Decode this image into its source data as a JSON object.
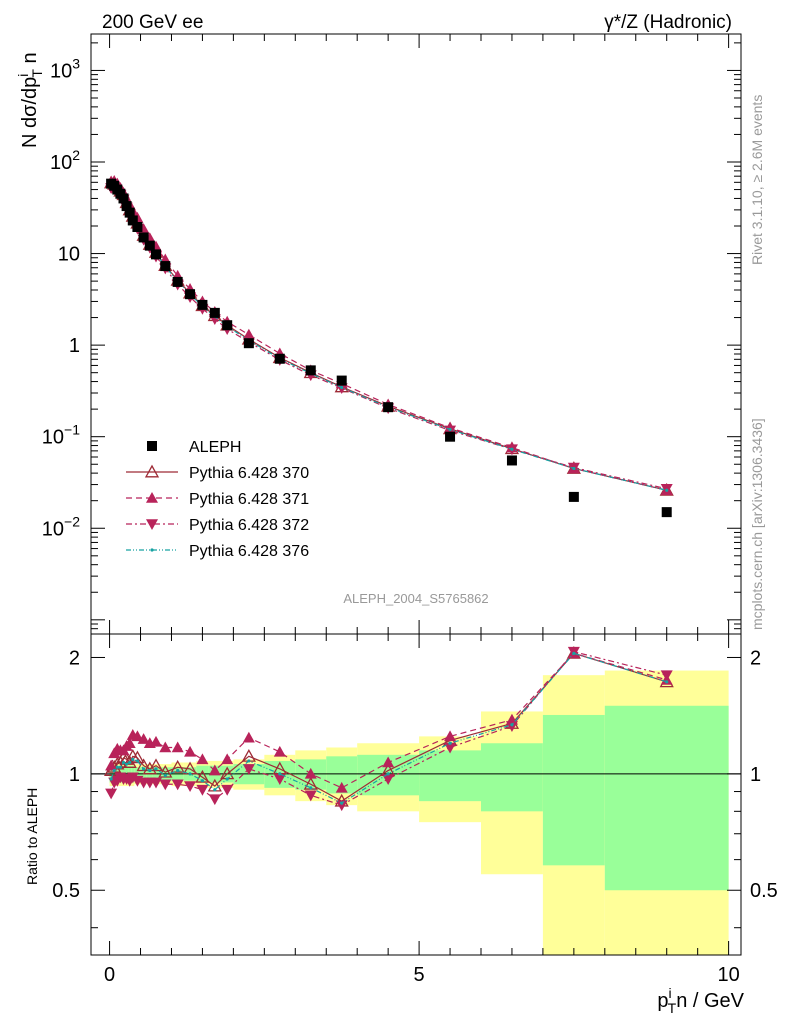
{
  "header": {
    "left": "200 GeV ee",
    "right": "γ*/Z (Hadronic)"
  },
  "side_labels": {
    "rivet": "Rivet 3.1.10, ≥ 2.6M events",
    "mcplots": "mcplots.cern.ch [arXiv:1306.3436]"
  },
  "watermark": "ALEPH_2004_S5765862",
  "colors": {
    "data": "#000000",
    "p370": "#9e2b36",
    "p371": "#b8235a",
    "p372": "#b8235a",
    "p376": "#17a2a2",
    "band_inner": "#99ff99",
    "band_outer": "#ffff99"
  },
  "chart_data": [
    {
      "type": "scatter",
      "panel": "main",
      "ylabel": "N dσ/dp_T^i n",
      "yscale": "log",
      "ylim": [
        0.0007,
        2500
      ],
      "xlim": [
        -0.3,
        10.2
      ],
      "ytick_labels": [
        "10^-2",
        "10^-1",
        "1",
        "10",
        "10^2",
        "10^3"
      ],
      "legend_position": "left-middle",
      "series": [
        {
          "name": "ALEPH",
          "marker": "square",
          "x": [
            0.025,
            0.075,
            0.125,
            0.175,
            0.225,
            0.275,
            0.325,
            0.375,
            0.45,
            0.55,
            0.65,
            0.75,
            0.9,
            1.1,
            1.3,
            1.5,
            1.7,
            1.9,
            2.25,
            2.75,
            3.25,
            3.75,
            4.5,
            5.5,
            6.5,
            7.5,
            9.0
          ],
          "y": [
            58,
            55,
            50,
            45,
            40,
            33,
            28,
            23,
            19.5,
            15,
            12.2,
            9.8,
            7.3,
            4.9,
            3.6,
            2.75,
            2.25,
            1.65,
            1.05,
            0.71,
            0.53,
            0.41,
            0.21,
            0.1,
            0.055,
            0.022,
            0.015
          ]
        },
        {
          "name": "Pythia 6.428 370",
          "marker": "open-triangle-up",
          "line": "solid",
          "x": [
            0.025,
            0.075,
            0.125,
            0.175,
            0.225,
            0.275,
            0.325,
            0.375,
            0.45,
            0.55,
            0.65,
            0.75,
            0.9,
            1.1,
            1.3,
            1.5,
            1.7,
            1.9,
            2.25,
            2.75,
            3.25,
            3.75,
            4.5,
            5.5,
            6.5,
            7.5,
            9.0
          ],
          "y": [
            59,
            57,
            53,
            48,
            44,
            36,
            30,
            25.5,
            21.5,
            15.8,
            12.6,
            10.3,
            7.4,
            5.1,
            3.7,
            2.7,
            2.1,
            1.65,
            1.16,
            0.73,
            0.5,
            0.35,
            0.215,
            0.122,
            0.074,
            0.045,
            0.026
          ]
        },
        {
          "name": "Pythia 6.428 371",
          "marker": "filled-triangle-up",
          "line": "dashed",
          "x": [
            0.025,
            0.075,
            0.125,
            0.175,
            0.225,
            0.275,
            0.325,
            0.375,
            0.45,
            0.55,
            0.65,
            0.75,
            0.9,
            1.1,
            1.3,
            1.5,
            1.7,
            1.9,
            2.25,
            2.75,
            3.25,
            3.75,
            4.5,
            5.5,
            6.5,
            7.5,
            9.0
          ],
          "y": [
            61,
            62,
            58,
            52,
            46,
            39,
            34,
            29,
            24.5,
            18.5,
            14.7,
            11.9,
            8.6,
            5.7,
            4.1,
            3.0,
            2.3,
            1.8,
            1.3,
            0.81,
            0.53,
            0.38,
            0.225,
            0.125,
            0.076,
            0.045,
            0.026
          ]
        },
        {
          "name": "Pythia 6.428 372",
          "marker": "filled-triangle-down",
          "line": "dash-dot",
          "x": [
            0.025,
            0.075,
            0.125,
            0.175,
            0.225,
            0.275,
            0.325,
            0.375,
            0.45,
            0.55,
            0.65,
            0.75,
            0.9,
            1.1,
            1.3,
            1.5,
            1.7,
            1.9,
            2.25,
            2.75,
            3.25,
            3.75,
            4.5,
            5.5,
            6.5,
            7.5,
            9.0
          ],
          "y": [
            52,
            52,
            48,
            44,
            39,
            32,
            27,
            22.5,
            18.7,
            14.2,
            11.6,
            9.3,
            6.9,
            4.6,
            3.35,
            2.5,
            1.93,
            1.5,
            1.08,
            0.69,
            0.47,
            0.34,
            0.205,
            0.117,
            0.073,
            0.046,
            0.027
          ]
        },
        {
          "name": "Pythia 6.428 376",
          "marker": "small-dot",
          "line": "dash-dot-dot",
          "x": [
            0.025,
            0.075,
            0.125,
            0.175,
            0.225,
            0.275,
            0.325,
            0.375,
            0.45,
            0.55,
            0.65,
            0.75,
            0.9,
            1.1,
            1.3,
            1.5,
            1.7,
            1.9,
            2.25,
            2.75,
            3.25,
            3.75,
            4.5,
            5.5,
            6.5,
            7.5,
            9.0
          ],
          "y": [
            56,
            56,
            52,
            47,
            43,
            35,
            30,
            25,
            21,
            15.5,
            12.4,
            10.1,
            7.2,
            5.0,
            3.6,
            2.65,
            2.05,
            1.6,
            1.13,
            0.71,
            0.49,
            0.345,
            0.21,
            0.12,
            0.073,
            0.045,
            0.026
          ]
        }
      ]
    },
    {
      "type": "line",
      "panel": "ratio",
      "ylabel": "Ratio to ALEPH",
      "xlabel": "p_T^i n / GeV",
      "xlim": [
        -0.3,
        10.2
      ],
      "ylim": [
        0.34,
        2.3
      ],
      "xtick_labels": [
        "0",
        "5",
        "10"
      ],
      "ytick_labels": [
        "0.5",
        "1",
        "2"
      ],
      "band_edges": [
        0,
        0.05,
        0.1,
        0.15,
        0.2,
        0.25,
        0.3,
        0.35,
        0.4,
        0.5,
        0.6,
        0.7,
        0.8,
        1.0,
        1.2,
        1.4,
        1.6,
        1.8,
        2.0,
        2.5,
        3.0,
        3.5,
        4.0,
        5.0,
        6.0,
        7.0,
        8.0,
        10.0
      ],
      "band_inner": [
        0.05,
        0.05,
        0.05,
        0.05,
        0.05,
        0.05,
        0.05,
        0.05,
        0.04,
        0.04,
        0.04,
        0.04,
        0.04,
        0.04,
        0.04,
        0.05,
        0.05,
        0.05,
        0.06,
        0.08,
        0.09,
        0.11,
        0.12,
        0.15,
        0.2,
        0.42,
        0.5
      ],
      "band_outer": [
        0.07,
        0.07,
        0.07,
        0.07,
        0.07,
        0.07,
        0.07,
        0.07,
        0.06,
        0.06,
        0.06,
        0.06,
        0.06,
        0.07,
        0.07,
        0.08,
        0.08,
        0.08,
        0.09,
        0.12,
        0.15,
        0.17,
        0.2,
        0.25,
        0.45,
        0.8,
        0.85
      ],
      "series": [
        {
          "name": "Pythia 6.428 370",
          "x": [
            0.025,
            0.075,
            0.125,
            0.175,
            0.225,
            0.275,
            0.325,
            0.375,
            0.45,
            0.55,
            0.65,
            0.75,
            0.9,
            1.1,
            1.3,
            1.5,
            1.7,
            1.9,
            2.25,
            2.75,
            3.25,
            3.75,
            4.5,
            5.5,
            6.5,
            7.5,
            9.0
          ],
          "y": [
            1.02,
            1.04,
            1.06,
            1.07,
            1.1,
            1.09,
            1.07,
            1.11,
            1.1,
            1.05,
            1.03,
            1.05,
            1.01,
            1.04,
            1.03,
            0.98,
            0.93,
            1.0,
            1.11,
            1.03,
            0.94,
            0.85,
            1.02,
            1.22,
            1.35,
            2.05,
            1.73
          ]
        },
        {
          "name": "Pythia 6.428 371",
          "x": [
            0.025,
            0.075,
            0.125,
            0.175,
            0.225,
            0.275,
            0.325,
            0.375,
            0.45,
            0.55,
            0.65,
            0.75,
            0.9,
            1.1,
            1.3,
            1.5,
            1.7,
            1.9,
            2.25,
            2.75,
            3.25,
            3.75,
            4.5,
            5.5,
            6.5,
            7.5,
            9.0
          ],
          "y": [
            1.05,
            1.13,
            1.16,
            1.15,
            1.15,
            1.18,
            1.2,
            1.26,
            1.25,
            1.23,
            1.2,
            1.21,
            1.17,
            1.17,
            1.14,
            1.09,
            1.02,
            1.09,
            1.24,
            1.14,
            1.0,
            0.92,
            1.07,
            1.25,
            1.38,
            2.05,
            1.75
          ]
        },
        {
          "name": "Pythia 6.428 372",
          "x": [
            0.025,
            0.075,
            0.125,
            0.175,
            0.225,
            0.275,
            0.325,
            0.375,
            0.45,
            0.55,
            0.65,
            0.75,
            0.9,
            1.1,
            1.3,
            1.5,
            1.7,
            1.9,
            2.25,
            2.75,
            3.25,
            3.75,
            4.5,
            5.5,
            6.5,
            7.5,
            9.0
          ],
          "y": [
            0.89,
            0.95,
            0.96,
            0.98,
            0.97,
            0.97,
            0.96,
            0.98,
            0.96,
            0.95,
            0.95,
            0.95,
            0.94,
            0.94,
            0.93,
            0.91,
            0.86,
            0.91,
            1.03,
            0.97,
            0.88,
            0.83,
            0.97,
            1.17,
            1.33,
            2.07,
            1.8
          ]
        },
        {
          "name": "Pythia 6.428 376",
          "x": [
            0.025,
            0.075,
            0.125,
            0.175,
            0.225,
            0.275,
            0.325,
            0.375,
            0.45,
            0.55,
            0.65,
            0.75,
            0.9,
            1.1,
            1.3,
            1.5,
            1.7,
            1.9,
            2.25,
            2.75,
            3.25,
            3.75,
            4.5,
            5.5,
            6.5,
            7.5,
            9.0
          ],
          "y": [
            0.97,
            1.02,
            1.04,
            1.04,
            1.07,
            1.06,
            1.07,
            1.09,
            1.08,
            1.03,
            1.02,
            1.03,
            0.99,
            1.02,
            1.0,
            0.96,
            0.91,
            0.97,
            1.08,
            1.0,
            0.92,
            0.84,
            1.0,
            1.2,
            1.34,
            2.05,
            1.73
          ]
        }
      ]
    }
  ]
}
